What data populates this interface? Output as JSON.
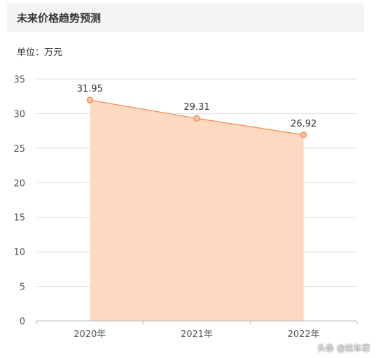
{
  "header": {
    "title": "未来价格趋势预测"
  },
  "unit_label": "单位：万元",
  "watermark": "头条 @捡车家",
  "colors": {
    "line": "#f08a4b",
    "fill": "#fdd9c1",
    "marker_fill": "#fbc19d",
    "grid": "#dddddd"
  },
  "chart_data": {
    "type": "area",
    "title": "未来价格趋势预测",
    "ylabel": "单位：万元",
    "categories": [
      "2020年",
      "2021年",
      "2022年"
    ],
    "values": [
      31.95,
      29.31,
      26.92
    ],
    "data_labels": [
      "31.95",
      "29.31",
      "26.92"
    ],
    "ylim": [
      0,
      35
    ],
    "yticks": [
      0,
      5,
      10,
      15,
      20,
      25,
      30,
      35
    ],
    "grid": true,
    "legend": "none"
  }
}
